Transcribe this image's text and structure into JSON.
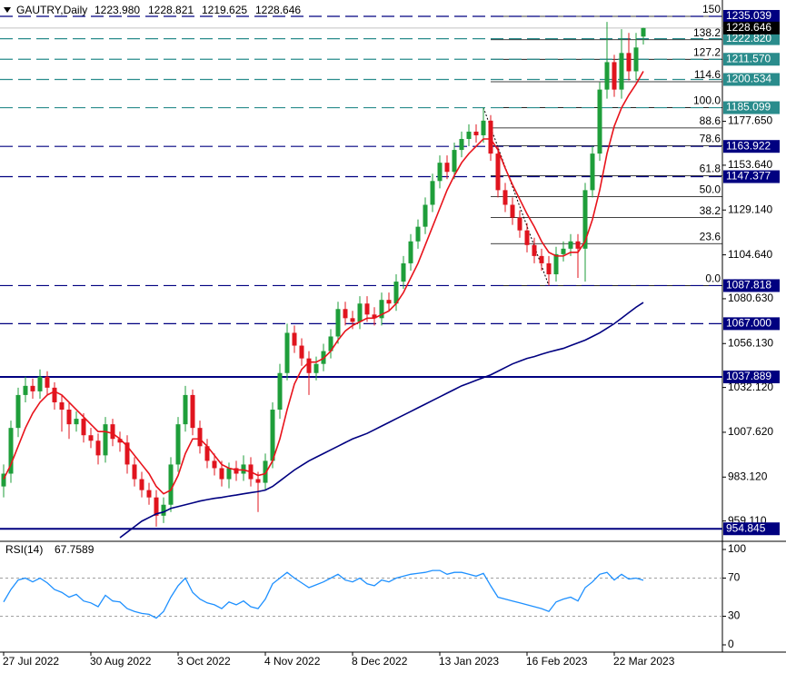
{
  "header": {
    "symbol": "GAUTRY,Daily",
    "open": "1223.980",
    "high": "1228.821",
    "low": "1219.625",
    "close": "1228.646"
  },
  "chart_data": [
    {
      "type": "candlestick",
      "categories": [
        "27 Jul 2022",
        null,
        null,
        null,
        null,
        null,
        null,
        null,
        null,
        null,
        null,
        null,
        "30 Aug 2022",
        null,
        null,
        null,
        null,
        null,
        null,
        null,
        null,
        null,
        null,
        null,
        "3 Oct 2022",
        null,
        null,
        null,
        null,
        null,
        null,
        null,
        null,
        null,
        null,
        null,
        "4 Nov 2022",
        null,
        null,
        null,
        null,
        null,
        null,
        null,
        null,
        null,
        null,
        null,
        "8 Dec 2022",
        null,
        null,
        null,
        null,
        null,
        null,
        null,
        null,
        null,
        null,
        null,
        "13 Jan 2023",
        null,
        null,
        null,
        null,
        null,
        null,
        null,
        null,
        null,
        null,
        null,
        "16 Feb 2023",
        null,
        null,
        null,
        null,
        null,
        null,
        null,
        null,
        null,
        null,
        null,
        "22 Mar 2023",
        null,
        null,
        null,
        null
      ],
      "open": [
        978,
        985,
        1010,
        1028,
        1033,
        1030,
        1038,
        1032,
        1024,
        1020,
        1012,
        1015,
        1006,
        1003,
        995,
        1012,
        1004,
        1002,
        990,
        982,
        976,
        972,
        962,
        968,
        990,
        1012,
        1028,
        1010,
        1000,
        992,
        988,
        982,
        988,
        985,
        990,
        982,
        980,
        992,
        1020,
        1040,
        1062,
        1055,
        1048,
        1040,
        1045,
        1052,
        1060,
        1075,
        1070,
        1068,
        1078,
        1072,
        1070,
        1080,
        1078,
        1090,
        1100,
        1112,
        1120,
        1132,
        1145,
        1155,
        1150,
        1162,
        1168,
        1172,
        1170,
        1178,
        1160,
        1140,
        1132,
        1125,
        1118,
        1110,
        1104,
        1100,
        1094,
        1105,
        1108,
        1112,
        1108,
        1140,
        1160,
        1195,
        1210,
        1195,
        1215,
        1205,
        1223.98
      ],
      "high": [
        990,
        1014,
        1032,
        1038,
        1037,
        1042,
        1041,
        1035,
        1028,
        1024,
        1019,
        1018,
        1010,
        1007,
        1016,
        1015,
        1008,
        1006,
        994,
        986,
        980,
        976,
        972,
        994,
        1016,
        1033,
        1031,
        1014,
        1004,
        996,
        992,
        991,
        992,
        995,
        994,
        986,
        996,
        1024,
        1045,
        1067,
        1066,
        1059,
        1052,
        1049,
        1056,
        1064,
        1079,
        1079,
        1074,
        1082,
        1082,
        1076,
        1084,
        1084,
        1094,
        1104,
        1116,
        1124,
        1136,
        1149,
        1159,
        1159,
        1166,
        1172,
        1176,
        1176,
        1185.099,
        1181,
        1164,
        1144,
        1136,
        1129,
        1122,
        1114,
        1108,
        1104,
        1109,
        1112,
        1116,
        1116,
        1144,
        1164,
        1199,
        1232,
        1214,
        1228,
        1226,
        1226,
        1228.821
      ],
      "low": [
        972,
        980,
        1005,
        1024,
        1026,
        1026,
        1028,
        1020,
        1008,
        1004,
        1008,
        1002,
        999,
        990,
        991,
        1000,
        997,
        985,
        978,
        972,
        968,
        956,
        958,
        964,
        986,
        1008,
        1006,
        996,
        988,
        984,
        978,
        977,
        981,
        981,
        978,
        964,
        976,
        988,
        1015,
        1036,
        1051,
        1044,
        1028,
        1036,
        1041,
        1048,
        1056,
        1066,
        1064,
        1064,
        1068,
        1066,
        1066,
        1074,
        1074,
        1086,
        1096,
        1108,
        1116,
        1128,
        1141,
        1146,
        1146,
        1158,
        1164,
        1166,
        1166,
        1156,
        1136,
        1128,
        1121,
        1114,
        1106,
        1100,
        1096,
        1087.818,
        1090,
        1101,
        1104,
        1092,
        1090,
        1136,
        1156,
        1190,
        1191,
        1190,
        1200,
        1200,
        1219.625
      ],
      "close": [
        985,
        1010,
        1028,
        1033,
        1030,
        1038,
        1032,
        1024,
        1020,
        1012,
        1015,
        1006,
        1003,
        995,
        1012,
        1004,
        1002,
        990,
        982,
        976,
        972,
        962,
        968,
        990,
        1012,
        1028,
        1010,
        1000,
        992,
        988,
        982,
        988,
        985,
        990,
        982,
        980,
        992,
        1020,
        1040,
        1062,
        1055,
        1048,
        1040,
        1045,
        1052,
        1060,
        1075,
        1070,
        1068,
        1078,
        1072,
        1070,
        1080,
        1078,
        1090,
        1100,
        1112,
        1120,
        1132,
        1145,
        1155,
        1150,
        1162,
        1168,
        1172,
        1170,
        1178,
        1160,
        1140,
        1132,
        1125,
        1118,
        1110,
        1104,
        1100,
        1094,
        1105,
        1108,
        1112,
        1108,
        1140,
        1160,
        1195,
        1210,
        1195,
        1215,
        1205,
        1218,
        1228.646
      ],
      "up_color": "#1e9e3a",
      "down_color": "#e0141e",
      "overlays": [
        {
          "color": "#e8131b",
          "values": [
            982,
            990,
            1000,
            1010,
            1018,
            1024,
            1028,
            1030,
            1028,
            1024,
            1020,
            1016,
            1012,
            1008,
            1008,
            1007,
            1004,
            1000,
            995,
            990,
            985,
            978,
            974,
            976,
            984,
            996,
            1004,
            1004,
            1000,
            995,
            990,
            988,
            987,
            987,
            986,
            984,
            985,
            992,
            1004,
            1020,
            1034,
            1042,
            1046,
            1046,
            1048,
            1052,
            1058,
            1063,
            1066,
            1068,
            1070,
            1070,
            1072,
            1074,
            1078,
            1084,
            1092,
            1100,
            1110,
            1120,
            1130,
            1140,
            1148,
            1155,
            1160,
            1164,
            1168,
            1168,
            1162,
            1152,
            1143,
            1135,
            1127,
            1120,
            1112,
            1106,
            1104,
            1104,
            1106,
            1106,
            1112,
            1124,
            1140,
            1160,
            1175,
            1185,
            1192,
            1198,
            1205
          ]
        },
        {
          "color": "#000080",
          "values": [
            null,
            null,
            null,
            null,
            null,
            null,
            null,
            null,
            null,
            null,
            null,
            null,
            null,
            null,
            null,
            null,
            950,
            953,
            956,
            959,
            961,
            963,
            964,
            966,
            967,
            968,
            969,
            970,
            970.8,
            971.5,
            972,
            972.7,
            973.3,
            974,
            974.6,
            975.2,
            976,
            978,
            981,
            984,
            987,
            989.5,
            992,
            994,
            996,
            998,
            1000,
            1002,
            1004,
            1005.5,
            1007,
            1009,
            1011,
            1013,
            1015,
            1017,
            1019,
            1021,
            1023,
            1025,
            1027,
            1029,
            1031,
            1033,
            1034.5,
            1036,
            1037.5,
            1039,
            1041,
            1043,
            1045,
            1046.5,
            1048,
            1049,
            1050.3,
            1051.5,
            1052.5,
            1053.5,
            1055,
            1056.5,
            1058,
            1060,
            1062,
            1064.5,
            1067,
            1070,
            1073,
            1076,
            1078.6
          ]
        }
      ],
      "ylim": [
        949,
        1240
      ],
      "yticks": [
        {
          "value": 1177.65,
          "label": "1177.650"
        },
        {
          "value": 1153.64,
          "label": "1153.640"
        },
        {
          "value": 1129.14,
          "label": "1129.140"
        },
        {
          "value": 1104.64,
          "label": "1104.640"
        },
        {
          "value": 1080.63,
          "label": "1080.630"
        },
        {
          "value": 1056.13,
          "label": "1056.130"
        },
        {
          "value": 1032.12,
          "label": "1032.120"
        },
        {
          "value": 1007.62,
          "label": "1007.620"
        },
        {
          "value": 983.12,
          "label": "983.120"
        },
        {
          "value": 959.11,
          "label": "959.110"
        }
      ],
      "levels": [
        {
          "value": 1235.039,
          "label": "1235.039",
          "color": "#000080",
          "style": "dashed"
        },
        {
          "value": 1222.82,
          "label": "1222.820",
          "color": "#2a8c8c",
          "style": "dashed"
        },
        {
          "value": 1211.57,
          "label": "1211.570",
          "color": "#2a8c8c",
          "style": "dashed"
        },
        {
          "value": 1200.534,
          "label": "1200.534",
          "color": "#2a8c8c",
          "style": "dashed"
        },
        {
          "value": 1185.099,
          "label": "1185.099",
          "color": "#2a8c8c",
          "style": "dashed"
        },
        {
          "value": 1163.922,
          "label": "1163.922",
          "color": "#000080",
          "style": "dashed"
        },
        {
          "value": 1147.377,
          "label": "1147.377",
          "color": "#000080",
          "style": "dashed"
        },
        {
          "value": 1087.818,
          "label": "1087.818",
          "color": "#000080",
          "style": "dashed"
        },
        {
          "value": 1067,
          "label": "1067.000",
          "color": "#000080",
          "style": "dashed"
        },
        {
          "value": 1037.889,
          "label": "1037.889",
          "color": "#000080",
          "style": "solid"
        },
        {
          "value": 954.845,
          "label": "954.845",
          "color": "#000080",
          "style": "solid"
        }
      ],
      "current": {
        "value": 1228.646,
        "label": "1228.646"
      },
      "fib": [
        {
          "label": "150",
          "price": 1235.039
        },
        {
          "label": "138.2",
          "price": 1222.25
        },
        {
          "label": "127.2",
          "price": 1211.55
        },
        {
          "label": "114.6",
          "price": 1199.29
        },
        {
          "label": "100.0",
          "price": 1185.099
        },
        {
          "label": "88.6",
          "price": 1174.0
        },
        {
          "label": "78.6",
          "price": 1164.28
        },
        {
          "label": "61.8",
          "price": 1147.94
        },
        {
          "label": "50.0",
          "price": 1136.46
        },
        {
          "label": "38.2",
          "price": 1124.98
        },
        {
          "label": "23.6",
          "price": 1110.78
        },
        {
          "label": "0.0",
          "price": 1087.818
        }
      ]
    },
    {
      "type": "line",
      "label": "RSI(14)",
      "last_label": "67.7589",
      "color": "#1e90ff",
      "values": [
        45,
        58,
        68,
        70,
        66,
        70,
        65,
        58,
        55,
        50,
        53,
        46,
        44,
        40,
        52,
        46,
        45,
        38,
        35,
        33,
        32,
        28,
        35,
        50,
        62,
        70,
        55,
        48,
        44,
        42,
        38,
        45,
        42,
        46,
        40,
        38,
        48,
        64,
        70,
        76,
        70,
        65,
        60,
        63,
        66,
        70,
        74,
        68,
        66,
        70,
        64,
        62,
        68,
        66,
        70,
        72,
        74,
        75,
        76,
        78,
        78,
        74,
        76,
        76,
        74,
        72,
        75,
        62,
        50,
        48,
        46,
        44,
        42,
        40,
        38,
        35,
        45,
        48,
        50,
        46,
        60,
        66,
        74,
        76,
        68,
        74,
        69,
        70,
        67.7589
      ],
      "ylim": [
        0,
        100
      ],
      "yticks": [
        100,
        70,
        30,
        0
      ],
      "levels": [
        70,
        30
      ]
    }
  ]
}
